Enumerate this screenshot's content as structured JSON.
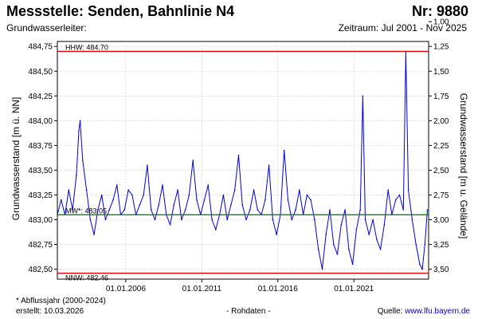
{
  "header": {
    "title": "Messstelle: Senden, Bahnlinie N4",
    "nr": "Nr: 9880",
    "aquifer": "Grundwasserleiter:",
    "period": "Zeitraum: Jul 2001 - Nov 2025"
  },
  "footer": {
    "note": "* Abflussjahr (2000-2024)",
    "created": "erstellt:  10.03.2026",
    "raw": "- Rohdaten -",
    "source_prefix": "Quelle: ",
    "source_link": "www.lfu.bayern.de"
  },
  "colors": {
    "series": "#0000dd",
    "hhw_nnw": "#dd0000",
    "mw": "#008800",
    "grid": "#cccccc"
  },
  "chart_data": {
    "type": "line",
    "title": "Messstelle: Senden, Bahnlinie N4",
    "ylabel": "Grundwasserstand [m ü. NN]",
    "y2label": "Grundwasserstand [m u. Gelände]",
    "xlim": [
      "2001-07-01",
      "2025-11-30"
    ],
    "ylim": [
      482.4,
      484.8
    ],
    "y_ticks": [
      "482,50",
      "482,75",
      "483,00",
      "483,25",
      "483,50",
      "483,75",
      "484,00",
      "484,25",
      "484,50",
      "484,75"
    ],
    "y2_ticks": [
      "1,00",
      "1,25",
      "1,50",
      "1,75",
      "2,00",
      "2,25",
      "2,50",
      "2,75",
      "3,00",
      "3,25",
      "3,50"
    ],
    "x_ticks": [
      "01.01.2006",
      "01.01.2011",
      "01.01.2016",
      "01.01.2021"
    ],
    "grid": true,
    "reference_lines": [
      {
        "name": "HHW",
        "label": "HHW: 484.70",
        "value": 484.7,
        "color": "#dd0000"
      },
      {
        "name": "MW",
        "label": "MW*: 483.05",
        "value": 483.05,
        "color": "#008800"
      },
      {
        "name": "NNW",
        "label": "NNW: 482.46",
        "value": 482.46,
        "color": "#dd0000"
      }
    ],
    "series": [
      {
        "color": "#0000dd",
        "points": [
          [
            "2001-07",
            483.05
          ],
          [
            "2001-10",
            483.2
          ],
          [
            "2002-01",
            483.05
          ],
          [
            "2002-04",
            483.3
          ],
          [
            "2002-07",
            483.1
          ],
          [
            "2002-10",
            483.45
          ],
          [
            "2002-12",
            483.9
          ],
          [
            "2003-01",
            484.0
          ],
          [
            "2003-03",
            483.6
          ],
          [
            "2003-06",
            483.3
          ],
          [
            "2003-09",
            483.0
          ],
          [
            "2003-12",
            482.85
          ],
          [
            "2004-03",
            483.1
          ],
          [
            "2004-06",
            483.25
          ],
          [
            "2004-09",
            483.0
          ],
          [
            "2004-12",
            483.1
          ],
          [
            "2005-03",
            483.2
          ],
          [
            "2005-06",
            483.35
          ],
          [
            "2005-09",
            483.05
          ],
          [
            "2005-12",
            483.1
          ],
          [
            "2006-03",
            483.3
          ],
          [
            "2006-06",
            483.25
          ],
          [
            "2006-09",
            483.05
          ],
          [
            "2006-12",
            483.15
          ],
          [
            "2007-03",
            483.25
          ],
          [
            "2007-06",
            483.55
          ],
          [
            "2007-09",
            483.1
          ],
          [
            "2007-12",
            483.0
          ],
          [
            "2008-03",
            483.15
          ],
          [
            "2008-06",
            483.35
          ],
          [
            "2008-09",
            483.05
          ],
          [
            "2008-12",
            482.95
          ],
          [
            "2009-03",
            483.15
          ],
          [
            "2009-06",
            483.3
          ],
          [
            "2009-09",
            483.0
          ],
          [
            "2009-12",
            483.1
          ],
          [
            "2010-03",
            483.25
          ],
          [
            "2010-06",
            483.6
          ],
          [
            "2010-09",
            483.2
          ],
          [
            "2010-12",
            483.05
          ],
          [
            "2011-03",
            483.2
          ],
          [
            "2011-06",
            483.35
          ],
          [
            "2011-09",
            483.0
          ],
          [
            "2011-12",
            482.9
          ],
          [
            "2012-03",
            483.05
          ],
          [
            "2012-06",
            483.25
          ],
          [
            "2012-09",
            483.0
          ],
          [
            "2012-12",
            483.15
          ],
          [
            "2013-03",
            483.3
          ],
          [
            "2013-06",
            483.65
          ],
          [
            "2013-09",
            483.15
          ],
          [
            "2013-12",
            483.0
          ],
          [
            "2014-03",
            483.1
          ],
          [
            "2014-06",
            483.3
          ],
          [
            "2014-09",
            483.1
          ],
          [
            "2014-12",
            483.05
          ],
          [
            "2015-03",
            483.2
          ],
          [
            "2015-06",
            483.55
          ],
          [
            "2015-09",
            483.0
          ],
          [
            "2015-12",
            482.85
          ],
          [
            "2016-03",
            483.05
          ],
          [
            "2016-06",
            483.7
          ],
          [
            "2016-09",
            483.2
          ],
          [
            "2016-12",
            483.0
          ],
          [
            "2017-03",
            483.1
          ],
          [
            "2017-06",
            483.3
          ],
          [
            "2017-09",
            483.05
          ],
          [
            "2017-12",
            483.25
          ],
          [
            "2018-03",
            483.2
          ],
          [
            "2018-06",
            483.0
          ],
          [
            "2018-09",
            482.7
          ],
          [
            "2018-12",
            482.5
          ],
          [
            "2019-03",
            482.85
          ],
          [
            "2019-06",
            483.1
          ],
          [
            "2019-09",
            482.75
          ],
          [
            "2019-12",
            482.65
          ],
          [
            "2020-03",
            482.95
          ],
          [
            "2020-06",
            483.1
          ],
          [
            "2020-09",
            482.7
          ],
          [
            "2020-12",
            482.55
          ],
          [
            "2021-03",
            482.9
          ],
          [
            "2021-06",
            483.1
          ],
          [
            "2021-08",
            484.25
          ],
          [
            "2021-10",
            483.0
          ],
          [
            "2022-01",
            482.85
          ],
          [
            "2022-04",
            483.0
          ],
          [
            "2022-07",
            482.8
          ],
          [
            "2022-10",
            482.7
          ],
          [
            "2023-01",
            482.95
          ],
          [
            "2023-04",
            483.3
          ],
          [
            "2023-07",
            483.05
          ],
          [
            "2023-10",
            483.2
          ],
          [
            "2024-01",
            483.25
          ],
          [
            "2024-04",
            483.1
          ],
          [
            "2024-06",
            484.7
          ],
          [
            "2024-08",
            483.3
          ],
          [
            "2024-11",
            483.0
          ],
          [
            "2025-02",
            482.75
          ],
          [
            "2025-05",
            482.55
          ],
          [
            "2025-07",
            482.5
          ],
          [
            "2025-09",
            482.75
          ],
          [
            "2025-11",
            483.1
          ]
        ]
      }
    ]
  }
}
